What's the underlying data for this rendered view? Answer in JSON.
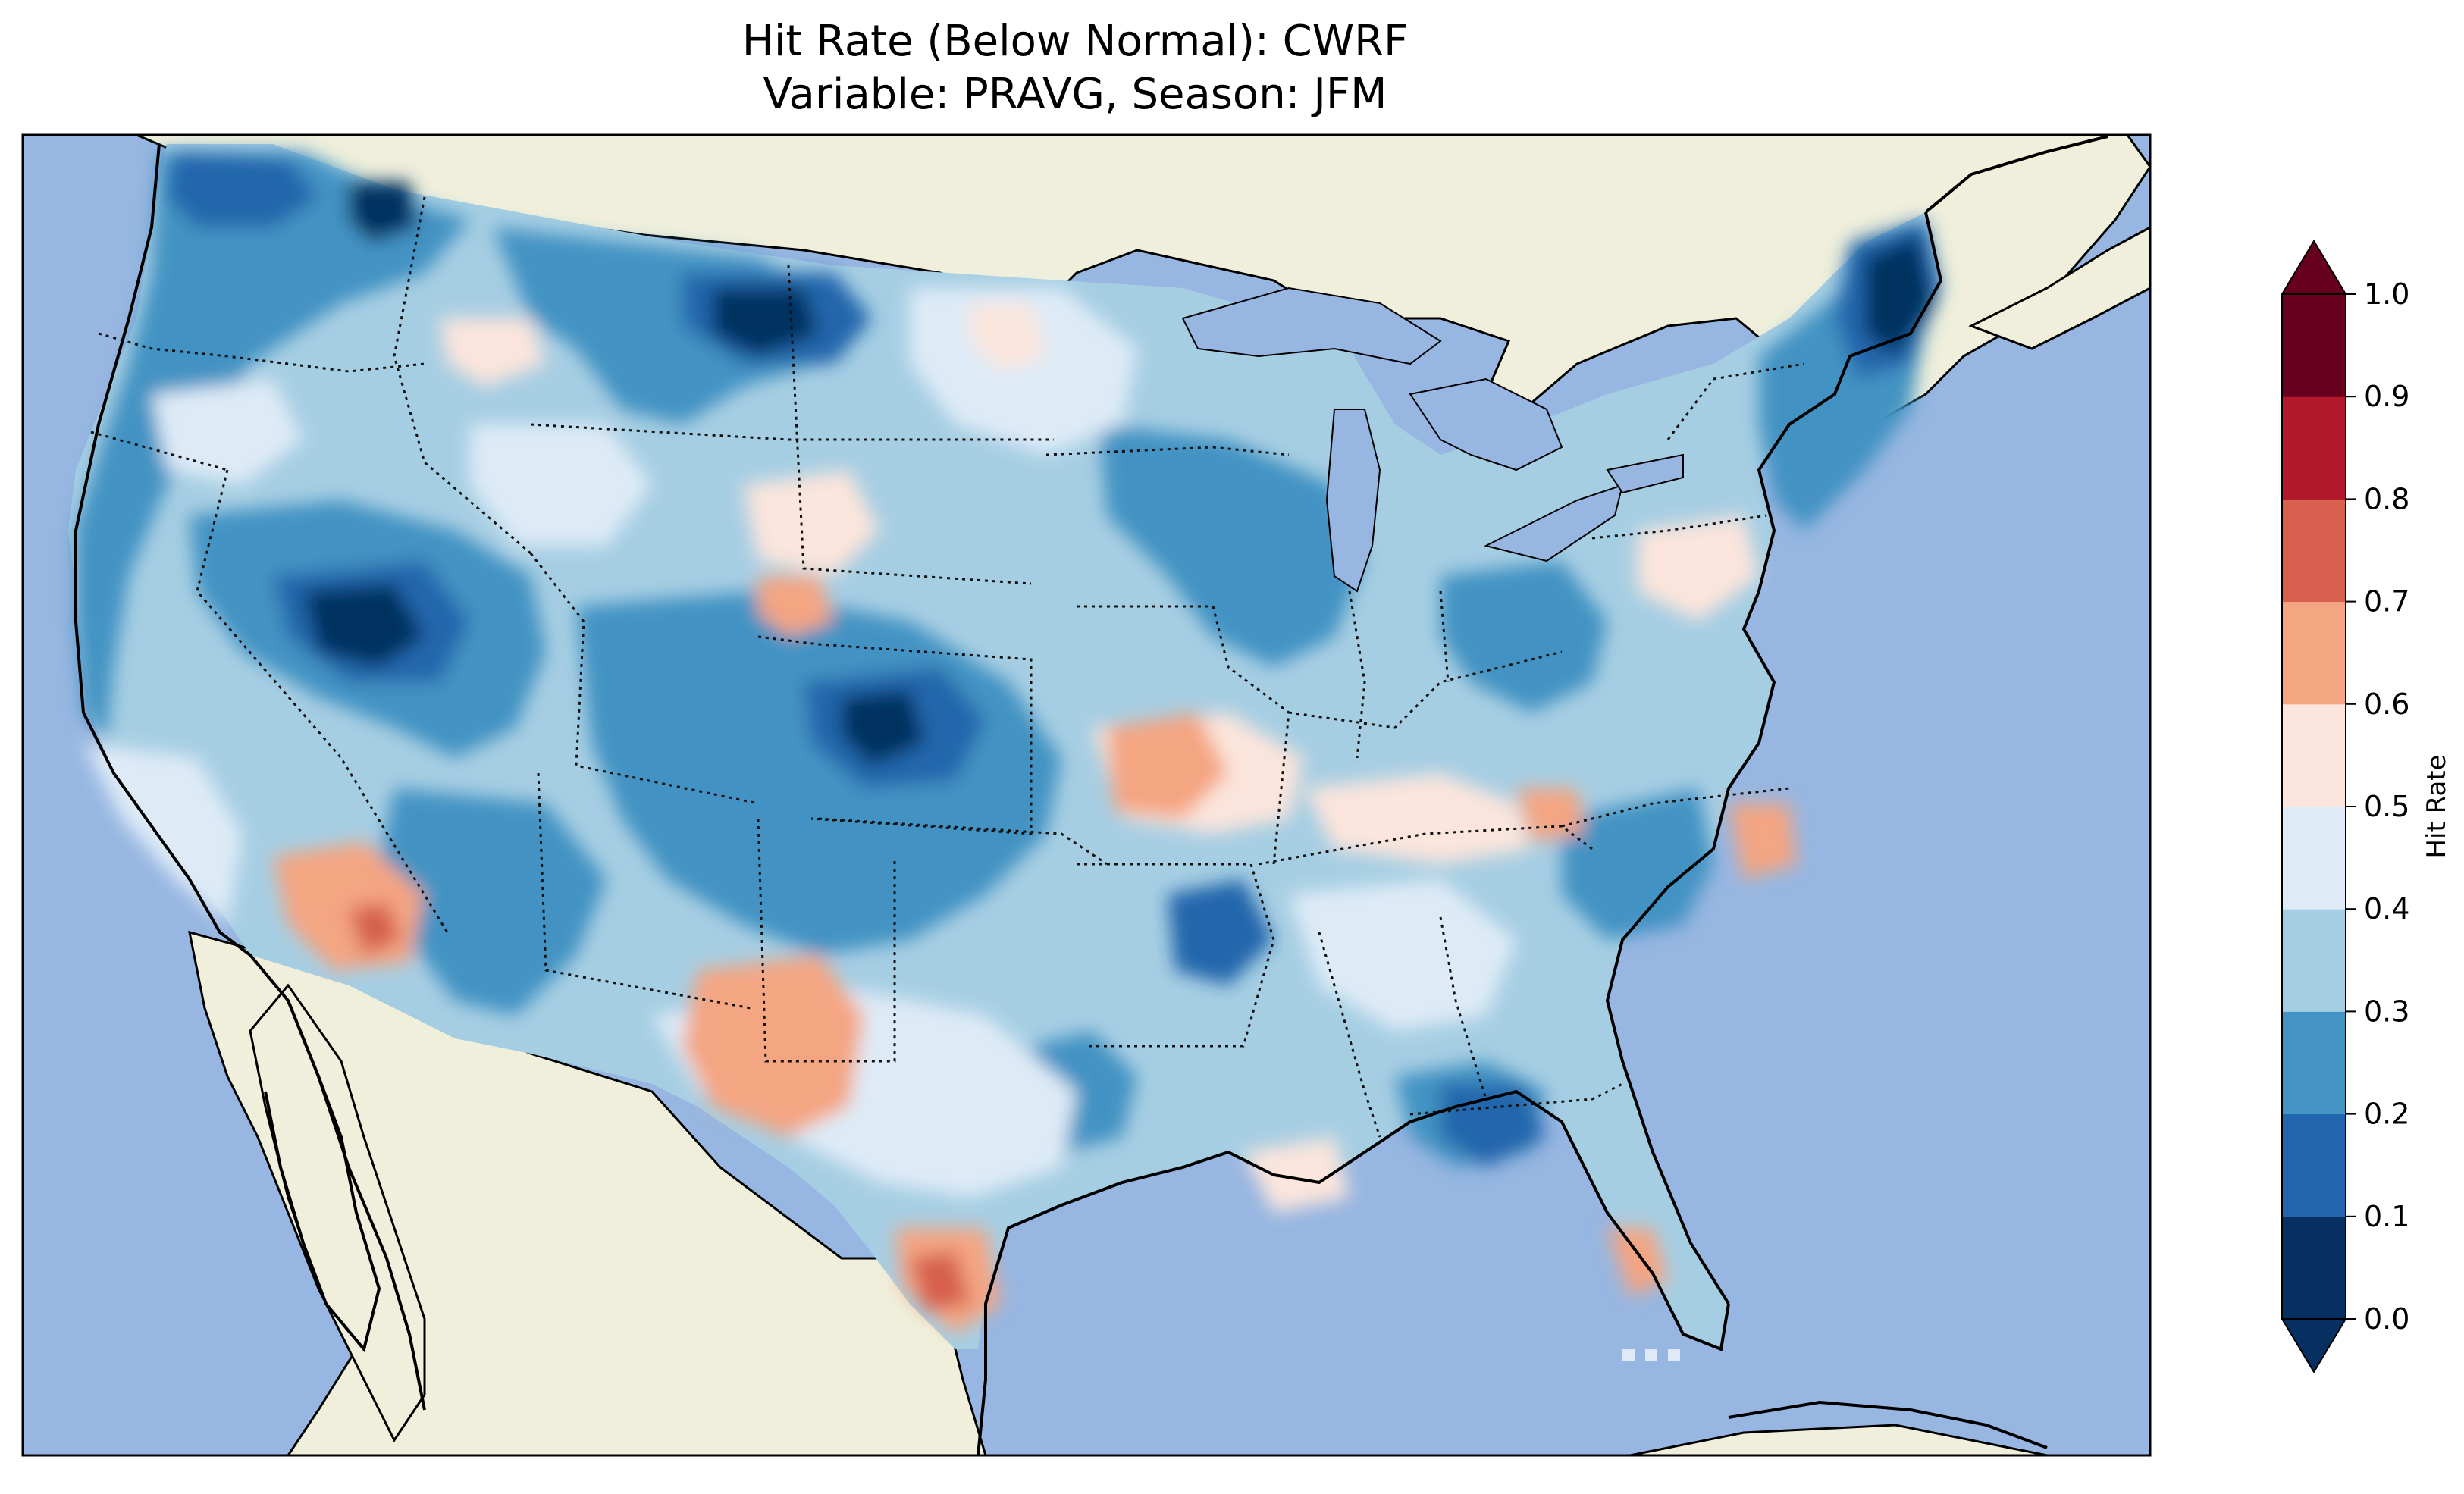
{
  "title": {
    "line1": "Hit Rate (Below Normal): CWRF",
    "line2": "Variable: PRAVG, Season: JFM"
  },
  "colors": {
    "ocean": "#97b6e1",
    "land": "#efefdb",
    "coast": "#000000"
  },
  "colorbar": {
    "label": "Hit Rate",
    "ticks": [
      "0.0",
      "0.1",
      "0.2",
      "0.3",
      "0.4",
      "0.5",
      "0.6",
      "0.7",
      "0.8",
      "0.9",
      "1.0"
    ],
    "bins": [
      {
        "from": 0.0,
        "to": 0.1,
        "color": "#053061"
      },
      {
        "from": 0.1,
        "to": 0.2,
        "color": "#2166ac"
      },
      {
        "from": 0.2,
        "to": 0.3,
        "color": "#4393c3"
      },
      {
        "from": 0.3,
        "to": 0.4,
        "color": "#a6cee3"
      },
      {
        "from": 0.4,
        "to": 0.5,
        "color": "#deebf7"
      },
      {
        "from": 0.5,
        "to": 0.6,
        "color": "#fbe5dc"
      },
      {
        "from": 0.6,
        "to": 0.7,
        "color": "#f4a582"
      },
      {
        "from": 0.7,
        "to": 0.8,
        "color": "#d6604d"
      },
      {
        "from": 0.8,
        "to": 0.9,
        "color": "#b2182b"
      },
      {
        "from": 0.9,
        "to": 1.0,
        "color": "#67001f"
      }
    ],
    "extend": "both"
  }
}
